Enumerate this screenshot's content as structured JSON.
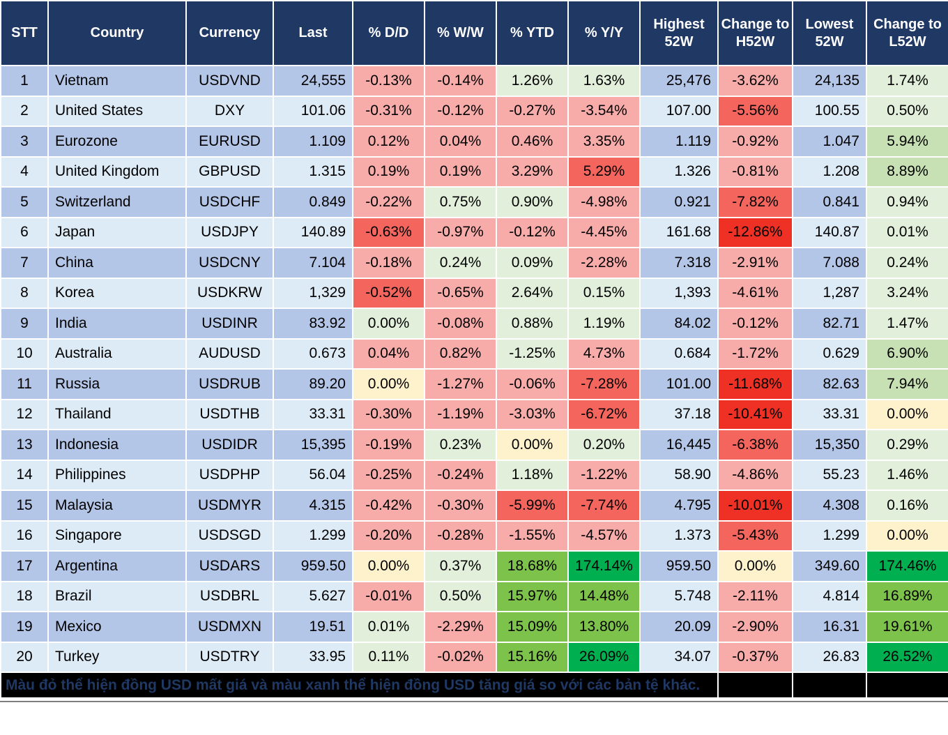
{
  "palette": {
    "header_bg": "#1F3864",
    "row_odd": "#B4C6E7",
    "row_even": "#DDEBF7",
    "grid": "#FFFFFF",
    "r1": "#F8ACAA",
    "r2": "#F4655D",
    "r3": "#EE3124",
    "y": "#FEF2CC",
    "g1": "#E2EFDA",
    "g2": "#C7E1B4",
    "g3": "#7DC24B",
    "g4": "#00B050",
    "note_bg": "#000000",
    "note_text": "#1F3864"
  },
  "table": {
    "columns": [
      "STT",
      "Country",
      "Currency",
      "Last",
      "% D/D",
      "% W/W",
      "% YTD",
      "% Y/Y",
      "Highest 52W",
      "Change to H52W",
      "Lowest 52W",
      "Change to L52W"
    ],
    "rows": [
      {
        "stt": "1",
        "country": "Vietnam",
        "currency": "USDVND",
        "last": "24,555",
        "dd": "-0.13%",
        "dd_c": "r1",
        "ww": "-0.14%",
        "ww_c": "r1",
        "ytd": "1.26%",
        "ytd_c": "g1",
        "yy": "1.63%",
        "yy_c": "g1",
        "h52": "25,476",
        "ch52": "-3.62%",
        "ch52_c": "r1",
        "l52": "24,135",
        "cl52": "1.74%",
        "cl52_c": "g1"
      },
      {
        "stt": "2",
        "country": "United States",
        "currency": "DXY",
        "last": "101.06",
        "dd": "-0.31%",
        "dd_c": "r1",
        "ww": "-0.12%",
        "ww_c": "r1",
        "ytd": "-0.27%",
        "ytd_c": "r1",
        "yy": "-3.54%",
        "yy_c": "r1",
        "h52": "107.00",
        "ch52": "-5.56%",
        "ch52_c": "r2",
        "l52": "100.55",
        "cl52": "0.50%",
        "cl52_c": "g1"
      },
      {
        "stt": "3",
        "country": "Eurozone",
        "currency": "EURUSD",
        "last": "1.109",
        "dd": "0.12%",
        "dd_c": "r1",
        "ww": "0.04%",
        "ww_c": "r1",
        "ytd": "0.46%",
        "ytd_c": "r1",
        "yy": "3.35%",
        "yy_c": "r1",
        "h52": "1.119",
        "ch52": "-0.92%",
        "ch52_c": "r1",
        "l52": "1.047",
        "cl52": "5.94%",
        "cl52_c": "g2"
      },
      {
        "stt": "4",
        "country": "United Kingdom",
        "currency": "GBPUSD",
        "last": "1.315",
        "dd": "0.19%",
        "dd_c": "r1",
        "ww": "0.19%",
        "ww_c": "r1",
        "ytd": "3.29%",
        "ytd_c": "r1",
        "yy": "5.29%",
        "yy_c": "r2",
        "h52": "1.326",
        "ch52": "-0.81%",
        "ch52_c": "r1",
        "l52": "1.208",
        "cl52": "8.89%",
        "cl52_c": "g2"
      },
      {
        "stt": "5",
        "country": "Switzerland",
        "currency": "USDCHF",
        "last": "0.849",
        "dd": "-0.22%",
        "dd_c": "r1",
        "ww": "0.75%",
        "ww_c": "g1",
        "ytd": "0.90%",
        "ytd_c": "g1",
        "yy": "-4.98%",
        "yy_c": "r1",
        "h52": "0.921",
        "ch52": "-7.82%",
        "ch52_c": "r2",
        "l52": "0.841",
        "cl52": "0.94%",
        "cl52_c": "g1"
      },
      {
        "stt": "6",
        "country": "Japan",
        "currency": "USDJPY",
        "last": "140.89",
        "dd": "-0.63%",
        "dd_c": "r2",
        "ww": "-0.97%",
        "ww_c": "r1",
        "ytd": "-0.12%",
        "ytd_c": "r1",
        "yy": "-4.45%",
        "yy_c": "r1",
        "h52": "161.68",
        "ch52": "-12.86%",
        "ch52_c": "r3",
        "l52": "140.87",
        "cl52": "0.01%",
        "cl52_c": "g1"
      },
      {
        "stt": "7",
        "country": "China",
        "currency": "USDCNY",
        "last": "7.104",
        "dd": "-0.18%",
        "dd_c": "r1",
        "ww": "0.24%",
        "ww_c": "g1",
        "ytd": "0.09%",
        "ytd_c": "g1",
        "yy": "-2.28%",
        "yy_c": "r1",
        "h52": "7.318",
        "ch52": "-2.91%",
        "ch52_c": "r1",
        "l52": "7.088",
        "cl52": "0.24%",
        "cl52_c": "g1"
      },
      {
        "stt": "8",
        "country": "Korea",
        "currency": "USDKRW",
        "last": "1,329",
        "dd": "-0.52%",
        "dd_c": "r2",
        "ww": "-0.65%",
        "ww_c": "r1",
        "ytd": "2.64%",
        "ytd_c": "g1",
        "yy": "0.15%",
        "yy_c": "g1",
        "h52": "1,393",
        "ch52": "-4.61%",
        "ch52_c": "r1",
        "l52": "1,287",
        "cl52": "3.24%",
        "cl52_c": "g1"
      },
      {
        "stt": "9",
        "country": "India",
        "currency": "USDINR",
        "last": "83.92",
        "dd": "0.00%",
        "dd_c": "g1",
        "ww": "-0.08%",
        "ww_c": "r1",
        "ytd": "0.88%",
        "ytd_c": "g1",
        "yy": "1.19%",
        "yy_c": "g1",
        "h52": "84.02",
        "ch52": "-0.12%",
        "ch52_c": "r1",
        "l52": "82.71",
        "cl52": "1.47%",
        "cl52_c": "g1"
      },
      {
        "stt": "10",
        "country": "Australia",
        "currency": "AUDUSD",
        "last": "0.673",
        "dd": "0.04%",
        "dd_c": "r1",
        "ww": "0.82%",
        "ww_c": "r1",
        "ytd": "-1.25%",
        "ytd_c": "g1",
        "yy": "4.73%",
        "yy_c": "r1",
        "h52": "0.684",
        "ch52": "-1.72%",
        "ch52_c": "r1",
        "l52": "0.629",
        "cl52": "6.90%",
        "cl52_c": "g2"
      },
      {
        "stt": "11",
        "country": "Russia",
        "currency": "USDRUB",
        "last": "89.20",
        "dd": "0.00%",
        "dd_c": "y",
        "ww": "-1.27%",
        "ww_c": "r1",
        "ytd": "-0.06%",
        "ytd_c": "r1",
        "yy": "-7.28%",
        "yy_c": "r2",
        "h52": "101.00",
        "ch52": "-11.68%",
        "ch52_c": "r3",
        "l52": "82.63",
        "cl52": "7.94%",
        "cl52_c": "g2"
      },
      {
        "stt": "12",
        "country": "Thailand",
        "currency": "USDTHB",
        "last": "33.31",
        "dd": "-0.30%",
        "dd_c": "r1",
        "ww": "-1.19%",
        "ww_c": "r1",
        "ytd": "-3.03%",
        "ytd_c": "r1",
        "yy": "-6.72%",
        "yy_c": "r2",
        "h52": "37.18",
        "ch52": "-10.41%",
        "ch52_c": "r3",
        "l52": "33.31",
        "cl52": "0.00%",
        "cl52_c": "y"
      },
      {
        "stt": "13",
        "country": "Indonesia",
        "currency": "USDIDR",
        "last": "15,395",
        "dd": "-0.19%",
        "dd_c": "r1",
        "ww": "0.23%",
        "ww_c": "g1",
        "ytd": "0.00%",
        "ytd_c": "y",
        "yy": "0.20%",
        "yy_c": "g1",
        "h52": "16,445",
        "ch52": "-6.38%",
        "ch52_c": "r2",
        "l52": "15,350",
        "cl52": "0.29%",
        "cl52_c": "g1"
      },
      {
        "stt": "14",
        "country": "Philippines",
        "currency": "USDPHP",
        "last": "56.04",
        "dd": "-0.25%",
        "dd_c": "r1",
        "ww": "-0.24%",
        "ww_c": "r1",
        "ytd": "1.18%",
        "ytd_c": "g1",
        "yy": "-1.22%",
        "yy_c": "r1",
        "h52": "58.90",
        "ch52": "-4.86%",
        "ch52_c": "r1",
        "l52": "55.23",
        "cl52": "1.46%",
        "cl52_c": "g1"
      },
      {
        "stt": "15",
        "country": "Malaysia",
        "currency": "USDMYR",
        "last": "4.315",
        "dd": "-0.42%",
        "dd_c": "r1",
        "ww": "-0.30%",
        "ww_c": "r1",
        "ytd": "-5.99%",
        "ytd_c": "r2",
        "yy": "-7.74%",
        "yy_c": "r2",
        "h52": "4.795",
        "ch52": "-10.01%",
        "ch52_c": "r3",
        "l52": "4.308",
        "cl52": "0.16%",
        "cl52_c": "g1"
      },
      {
        "stt": "16",
        "country": "Singapore",
        "currency": "USDSGD",
        "last": "1.299",
        "dd": "-0.20%",
        "dd_c": "r1",
        "ww": "-0.28%",
        "ww_c": "r1",
        "ytd": "-1.55%",
        "ytd_c": "r1",
        "yy": "-4.57%",
        "yy_c": "r1",
        "h52": "1.373",
        "ch52": "-5.43%",
        "ch52_c": "r2",
        "l52": "1.299",
        "cl52": "0.00%",
        "cl52_c": "y"
      },
      {
        "stt": "17",
        "country": "Argentina",
        "currency": "USDARS",
        "last": "959.50",
        "dd": "0.00%",
        "dd_c": "y",
        "ww": "0.37%",
        "ww_c": "g1",
        "ytd": "18.68%",
        "ytd_c": "g3",
        "yy": "174.14%",
        "yy_c": "g4",
        "h52": "959.50",
        "ch52": "0.00%",
        "ch52_c": "y",
        "l52": "349.60",
        "cl52": "174.46%",
        "cl52_c": "g4"
      },
      {
        "stt": "18",
        "country": "Brazil",
        "currency": "USDBRL",
        "last": "5.627",
        "dd": "-0.01%",
        "dd_c": "r1",
        "ww": "0.50%",
        "ww_c": "g1",
        "ytd": "15.97%",
        "ytd_c": "g3",
        "yy": "14.48%",
        "yy_c": "g3",
        "h52": "5.748",
        "ch52": "-2.11%",
        "ch52_c": "r1",
        "l52": "4.814",
        "cl52": "16.89%",
        "cl52_c": "g3"
      },
      {
        "stt": "19",
        "country": "Mexico",
        "currency": "USDMXN",
        "last": "19.51",
        "dd": "0.01%",
        "dd_c": "g1",
        "ww": "-2.29%",
        "ww_c": "r1",
        "ytd": "15.09%",
        "ytd_c": "g3",
        "yy": "13.80%",
        "yy_c": "g3",
        "h52": "20.09",
        "ch52": "-2.90%",
        "ch52_c": "r1",
        "l52": "16.31",
        "cl52": "19.61%",
        "cl52_c": "g3"
      },
      {
        "stt": "20",
        "country": "Turkey",
        "currency": "USDTRY",
        "last": "33.95",
        "dd": "0.11%",
        "dd_c": "g1",
        "ww": "-0.02%",
        "ww_c": "r1",
        "ytd": "15.16%",
        "ytd_c": "g3",
        "yy": "26.09%",
        "yy_c": "g4",
        "h52": "34.07",
        "ch52": "-0.37%",
        "ch52_c": "r1",
        "l52": "26.83",
        "cl52": "26.52%",
        "cl52_c": "g4"
      }
    ]
  },
  "footnote": "Màu đỏ thể hiện đồng USD mất giá và màu xanh thể hiện đồng USD tăng giá so với các bản tệ khác."
}
